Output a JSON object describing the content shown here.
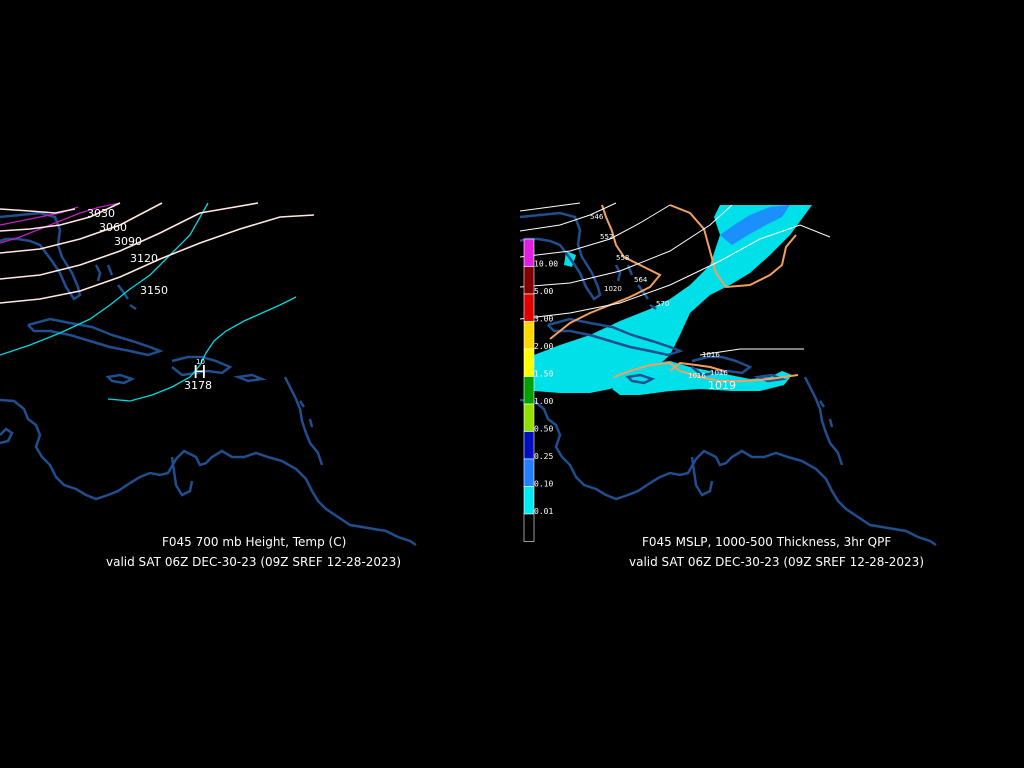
{
  "left_panel": {
    "title": "F045 700 mb Height, Temp (C)",
    "valid": "valid SAT 06Z DEC-30-23 (09Z SREF 12-28-2023)",
    "height_labels": [
      "3030",
      "3060",
      "3090",
      "3120",
      "3150"
    ],
    "high_label": "H",
    "high_value": "3178",
    "temp_label": "10"
  },
  "right_panel": {
    "title": "F045 MSLP, 1000-500 Thickness, 3hr QPF",
    "valid": "valid SAT 06Z DEC-30-23 (09Z SREF 12-28-2023)",
    "thickness_labels": [
      "546",
      "552",
      "558",
      "564",
      "570"
    ],
    "pressure_labels": [
      "1020",
      "1016",
      "1016",
      "1016",
      "1019"
    ],
    "colorbar": [
      {
        "label": "10.00",
        "color": "#e020e0"
      },
      {
        "label": "5.00",
        "color": "#800000"
      },
      {
        "label": "3.00",
        "color": "#e00000"
      },
      {
        "label": "2.00",
        "color": "#ffd700"
      },
      {
        "label": "1.50",
        "color": "#ffff00"
      },
      {
        "label": "1.00",
        "color": "#00a000"
      },
      {
        "label": "0.50",
        "color": "#90e000"
      },
      {
        "label": "0.25",
        "color": "#0010c0"
      },
      {
        "label": "0.10",
        "color": "#2080ff"
      },
      {
        "label": "0.01",
        "color": "#00e8f0"
      },
      {
        "label": "",
        "color": "#000000"
      }
    ]
  },
  "colors": {
    "coast": "#1f4f8f",
    "height_contour": "#ffe8e0",
    "thickness_contour": "#ffffff",
    "isobar": "#f0a060",
    "qpf_light": "#00e0e8",
    "qpf_med": "#2080ff",
    "temp_cyan": "#00d8e0",
    "temp_magenta": "#c020c0"
  }
}
